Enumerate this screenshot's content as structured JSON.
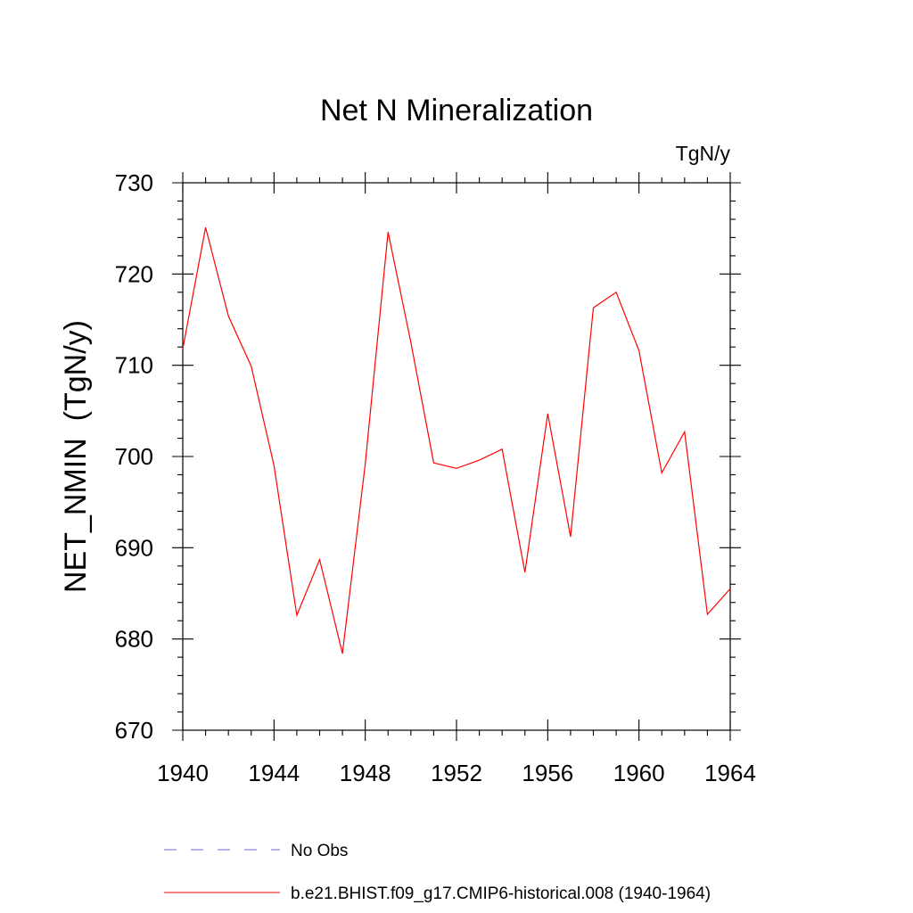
{
  "chart_data": {
    "type": "line",
    "title": "Net N Mineralization",
    "units_label": "TgN/y",
    "xlabel": "",
    "ylabel": "NET_NMIN  (TgN/y)",
    "xlim": [
      1940,
      1964
    ],
    "ylim": [
      670,
      730
    ],
    "x_ticks": [
      1940,
      1944,
      1948,
      1952,
      1956,
      1960,
      1964
    ],
    "x_tick_labels": [
      "1940",
      "1944",
      "1948",
      "1952",
      "1956",
      "1960",
      "1964"
    ],
    "x_minor_step": 1,
    "y_ticks": [
      670,
      680,
      690,
      700,
      710,
      720,
      730
    ],
    "y_tick_labels": [
      "670",
      "680",
      "690",
      "700",
      "710",
      "720",
      "730"
    ],
    "y_minor_step": 2,
    "grid": false,
    "legend_position": "bottom",
    "series": [
      {
        "name": "No Obs",
        "color": "#6a6ad0",
        "style": "dashed",
        "x": [],
        "values": []
      },
      {
        "name": "b.e21.BHIST.f09_g17.CMIP6-historical.008 (1940-1964)",
        "color": "#ff0000",
        "style": "solid",
        "x": [
          1940,
          1941,
          1942,
          1943,
          1944,
          1945,
          1946,
          1947,
          1948,
          1949,
          1950,
          1951,
          1952,
          1953,
          1954,
          1955,
          1956,
          1957,
          1958,
          1959,
          1960,
          1961,
          1962,
          1963,
          1964
        ],
        "values": [
          711.8,
          725.1,
          715.4,
          709.9,
          699.0,
          682.6,
          688.7,
          678.4,
          699.2,
          724.6,
          712.5,
          699.3,
          698.7,
          699.6,
          700.8,
          687.3,
          704.7,
          691.2,
          716.3,
          718.0,
          711.6,
          698.2,
          702.7,
          682.7,
          685.5
        ]
      }
    ]
  }
}
